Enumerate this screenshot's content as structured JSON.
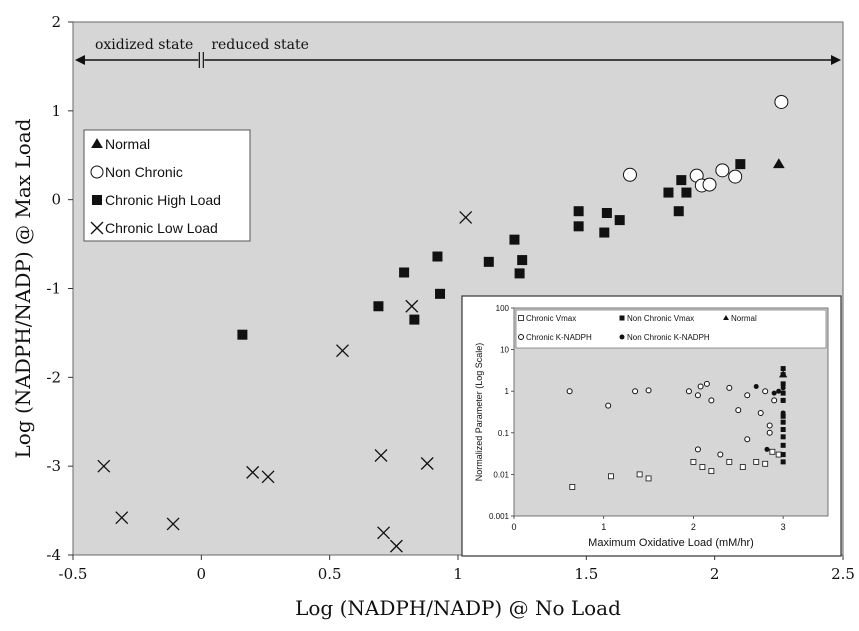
{
  "chart_data": [
    {
      "type": "scatter",
      "xlabel": "Log (NADPH/NADP) @ No Load",
      "ylabel": "Log (NADPH/NADP) @ Max Load",
      "xlim": [
        -0.5,
        2.5
      ],
      "ylim": [
        -4,
        2
      ],
      "xticks": [
        "-0.5",
        "0",
        "0.5",
        "1",
        "1.5",
        "2",
        "2.5"
      ],
      "yticks": [
        "-4",
        "-3",
        "-2",
        "-1",
        "0",
        "1",
        "2"
      ],
      "grid": false,
      "legend_position": "left",
      "annotations": {
        "oxidized": "oxidized state",
        "reduced": "reduced state",
        "divider_x": 0
      },
      "series": [
        {
          "name": "Normal",
          "marker": "triangle",
          "color": "#111111",
          "points": [
            [
              2.25,
              0.4
            ]
          ]
        },
        {
          "name": "Non Chronic",
          "marker": "circle-open",
          "color": "#111111",
          "points": [
            [
              1.67,
              0.28
            ],
            [
              1.93,
              0.27
            ],
            [
              1.95,
              0.16
            ],
            [
              1.98,
              0.17
            ],
            [
              2.03,
              0.33
            ],
            [
              2.08,
              0.26
            ],
            [
              2.26,
              1.1
            ]
          ]
        },
        {
          "name": "Chronic High Load",
          "marker": "square",
          "color": "#111111",
          "points": [
            [
              0.16,
              -1.52
            ],
            [
              0.69,
              -1.2
            ],
            [
              0.79,
              -0.82
            ],
            [
              0.83,
              -1.35
            ],
            [
              0.92,
              -0.64
            ],
            [
              0.93,
              -1.06
            ],
            [
              1.12,
              -0.7
            ],
            [
              1.22,
              -0.45
            ],
            [
              1.24,
              -0.83
            ],
            [
              1.25,
              -0.68
            ],
            [
              1.47,
              -0.13
            ],
            [
              1.47,
              -0.3
            ],
            [
              1.57,
              -0.37
            ],
            [
              1.58,
              -0.15
            ],
            [
              1.63,
              -0.23
            ],
            [
              1.82,
              0.08
            ],
            [
              1.86,
              -0.13
            ],
            [
              1.87,
              0.22
            ],
            [
              1.89,
              0.08
            ],
            [
              2.1,
              0.4
            ]
          ]
        },
        {
          "name": "Chronic Low Load",
          "marker": "x",
          "color": "#111111",
          "points": [
            [
              -0.38,
              -3.0
            ],
            [
              -0.31,
              -3.58
            ],
            [
              -0.11,
              -3.65
            ],
            [
              0.2,
              -3.07
            ],
            [
              0.26,
              -3.12
            ],
            [
              0.55,
              -1.7
            ],
            [
              0.7,
              -2.88
            ],
            [
              0.71,
              -3.75
            ],
            [
              0.76,
              -3.9
            ],
            [
              0.82,
              -1.2
            ],
            [
              0.88,
              -2.97
            ],
            [
              1.03,
              -0.2
            ]
          ]
        }
      ]
    },
    {
      "type": "scatter",
      "role": "inset",
      "xlabel": "Maximum Oxidative Load (mM/hr)",
      "ylabel": "Normalized Parameter (Log Scale)",
      "xlim": [
        0,
        3.5
      ],
      "xticks": [
        "0",
        "1",
        "2",
        "3"
      ],
      "ylim": [
        0.001,
        100
      ],
      "yscale": "log",
      "yticks": [
        "100",
        "10",
        "1",
        "0.1",
        "0.01",
        "0.001"
      ],
      "series": [
        {
          "name": "Chronic Vmax",
          "marker": "square-open",
          "points": [
            [
              0.65,
              0.005
            ],
            [
              1.08,
              0.009
            ],
            [
              1.4,
              0.01
            ],
            [
              1.5,
              0.008
            ],
            [
              2.0,
              0.02
            ],
            [
              2.1,
              0.015
            ],
            [
              2.2,
              0.012
            ],
            [
              2.4,
              0.02
            ],
            [
              2.55,
              0.015
            ],
            [
              2.7,
              0.02
            ],
            [
              2.8,
              0.018
            ],
            [
              2.88,
              0.035
            ],
            [
              2.95,
              0.03
            ]
          ]
        },
        {
          "name": "Non Chronic Vmax",
          "marker": "square",
          "points": [
            [
              3.0,
              0.03
            ],
            [
              3.0,
              0.05
            ],
            [
              3.0,
              0.08
            ],
            [
              3.0,
              0.12
            ],
            [
              3.0,
              0.18
            ],
            [
              3.0,
              0.25
            ],
            [
              3.0,
              0.6
            ],
            [
              3.0,
              0.9
            ],
            [
              3.0,
              1.5
            ],
            [
              3.0,
              2.5
            ],
            [
              3.0,
              3.5
            ],
            [
              3.0,
              0.02
            ]
          ]
        },
        {
          "name": "Normal",
          "marker": "triangle",
          "points": [
            [
              3.0,
              2.5
            ]
          ]
        },
        {
          "name": "Chronic K-NADPH",
          "marker": "circle-open",
          "points": [
            [
              0.62,
              1.0
            ],
            [
              1.05,
              0.45
            ],
            [
              1.35,
              1.0
            ],
            [
              1.5,
              1.05
            ],
            [
              1.95,
              1.0
            ],
            [
              2.05,
              0.8
            ],
            [
              2.08,
              1.3
            ],
            [
              2.15,
              1.5
            ],
            [
              2.2,
              0.6
            ],
            [
              2.4,
              1.2
            ],
            [
              2.5,
              0.35
            ],
            [
              2.6,
              0.8
            ],
            [
              2.75,
              0.3
            ],
            [
              2.8,
              1.0
            ],
            [
              2.85,
              0.15
            ],
            [
              2.9,
              0.6
            ],
            [
              2.05,
              0.04
            ],
            [
              2.3,
              0.03
            ],
            [
              2.6,
              0.07
            ],
            [
              2.85,
              0.1
            ]
          ]
        },
        {
          "name": "Non Chronic K-NADPH",
          "marker": "circle",
          "points": [
            [
              2.7,
              1.3
            ],
            [
              2.82,
              0.04
            ],
            [
              2.9,
              0.9
            ],
            [
              2.95,
              1.0
            ],
            [
              3.0,
              1.2
            ],
            [
              3.0,
              0.3
            ],
            [
              3.0,
              0.6
            ]
          ]
        }
      ]
    }
  ]
}
